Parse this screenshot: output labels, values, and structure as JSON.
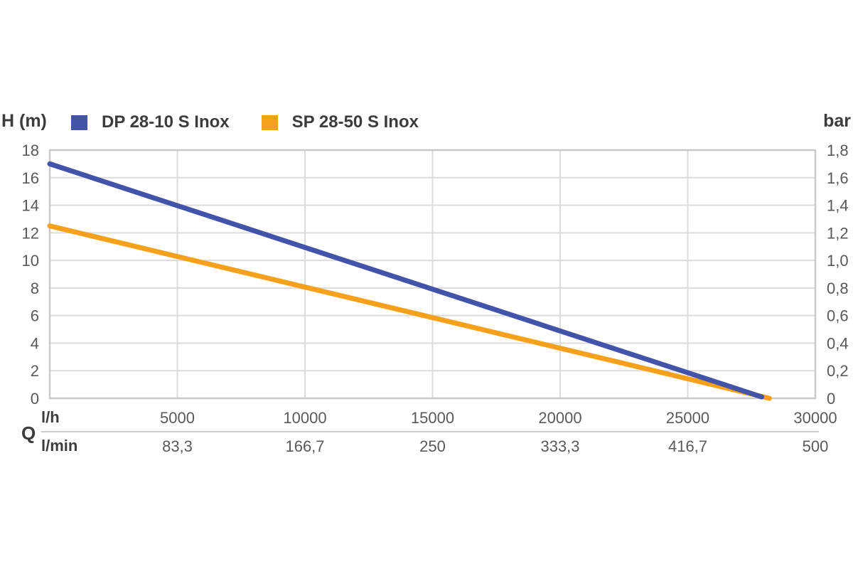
{
  "chart_data": {
    "type": "line",
    "title": "",
    "legend_position": "top",
    "grid": true,
    "series": [
      {
        "name": "DP 28-10 S Inox",
        "color": "#4353a9",
        "points": [
          [
            0,
            17.0
          ],
          [
            27900,
            0.1
          ]
        ]
      },
      {
        "name": "SP 28-50 S Inox",
        "color": "#f6a01b",
        "points": [
          [
            0,
            12.5
          ],
          [
            28200,
            0.0
          ]
        ]
      }
    ],
    "x_axis": {
      "symbol": "Q",
      "unit_primary": "l/h",
      "unit_secondary": "l/min",
      "range": [
        0,
        30000
      ],
      "ticks_lh": [
        {
          "value": 5000,
          "label": "5000"
        },
        {
          "value": 10000,
          "label": "10000"
        },
        {
          "value": 15000,
          "label": "15000"
        },
        {
          "value": 20000,
          "label": "20000"
        },
        {
          "value": 25000,
          "label": "25000"
        },
        {
          "value": 30000,
          "label": "30000"
        }
      ],
      "ticks_lmin": [
        {
          "value": 5000,
          "label": "83,3"
        },
        {
          "value": 10000,
          "label": "166,7"
        },
        {
          "value": 15000,
          "label": "250"
        },
        {
          "value": 20000,
          "label": "333,3"
        },
        {
          "value": 25000,
          "label": "416,7"
        },
        {
          "value": 30000,
          "label": "500"
        }
      ]
    },
    "y_axis_left": {
      "label": "H (m)",
      "range": [
        0,
        18
      ],
      "ticks": [
        {
          "value": 18,
          "label": "18"
        },
        {
          "value": 16,
          "label": "16"
        },
        {
          "value": 14,
          "label": "14"
        },
        {
          "value": 12,
          "label": "12"
        },
        {
          "value": 10,
          "label": "10"
        },
        {
          "value": 8,
          "label": "8"
        },
        {
          "value": 6,
          "label": "6"
        },
        {
          "value": 4,
          "label": "4"
        },
        {
          "value": 2,
          "label": "2"
        },
        {
          "value": 0,
          "label": "0"
        }
      ]
    },
    "y_axis_right": {
      "label": "bar",
      "range": [
        0,
        1.8
      ],
      "ticks": [
        {
          "value": 1.8,
          "label": "1,8"
        },
        {
          "value": 1.6,
          "label": "1,6"
        },
        {
          "value": 1.4,
          "label": "1,4"
        },
        {
          "value": 1.2,
          "label": "1,2"
        },
        {
          "value": 1.0,
          "label": "1,0"
        },
        {
          "value": 0.8,
          "label": "0,8"
        },
        {
          "value": 0.6,
          "label": "0,6"
        },
        {
          "value": 0.4,
          "label": "0,4"
        },
        {
          "value": 0.2,
          "label": "0,2"
        },
        {
          "value": 0,
          "label": "0"
        }
      ]
    },
    "colors": {
      "grid": "#dcdcdc",
      "border": "#c9c9c9",
      "tick_text": "#59595b",
      "label_text": "#3c3c3e"
    }
  }
}
